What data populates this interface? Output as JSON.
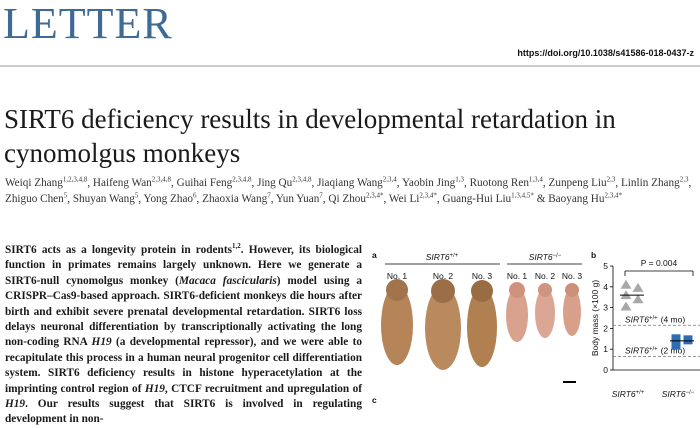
{
  "header": {
    "section": "LETTER",
    "doi": "https://doi.org/10.1038/s41586-018-0437-z"
  },
  "title": "SIRT6 deficiency results in developmental retardation in cynomolgus monkeys",
  "authors": [
    {
      "name": "Weiqi Zhang",
      "affil": "1,2,3,4,8",
      "sep": ", "
    },
    {
      "name": "Haifeng Wan",
      "affil": "2,3,4,8",
      "sep": ", "
    },
    {
      "name": "Guihai Feng",
      "affil": "2,3,4,8",
      "sep": ", "
    },
    {
      "name": "Jing Qu",
      "affil": "2,3,4,8",
      "sep": ", "
    },
    {
      "name": "Jiaqiang Wang",
      "affil": "2,3,4",
      "sep": ", "
    },
    {
      "name": "Yaobin Jing",
      "affil": "1,3",
      "sep": ", "
    },
    {
      "name": "Ruotong Ren",
      "affil": "1,3,4",
      "sep": ", "
    },
    {
      "name": "Zunpeng Liu",
      "affil": "2,3",
      "sep": ", "
    },
    {
      "name": "Linlin Zhang",
      "affil": "2,3",
      "sep": ", "
    },
    {
      "name": "Zhiguo Chen",
      "affil": "5",
      "sep": ", "
    },
    {
      "name": "Shuyan Wang",
      "affil": "5",
      "sep": ", "
    },
    {
      "name": "Yong Zhao",
      "affil": "6",
      "sep": ", "
    },
    {
      "name": "Zhaoxia Wang",
      "affil": "7",
      "sep": ", "
    },
    {
      "name": "Yun Yuan",
      "affil": "7",
      "sep": ", "
    },
    {
      "name": "Qi Zhou",
      "affil": "2,3,4*",
      "sep": ", "
    },
    {
      "name": "Wei Li",
      "affil": "2,3,4*",
      "sep": ", "
    },
    {
      "name": "Guang-Hui Liu",
      "affil": "1,3,4,5*",
      "sep": " & "
    },
    {
      "name": "Baoyang Hu",
      "affil": "2,3,4*"
    }
  ],
  "abstract": [
    {
      "text": "SIRT6 acts as a longevity protein in rodents"
    },
    {
      "text": "1,2",
      "style": "sup"
    },
    {
      "text": ". However, its biological function in primates remains largely unknown. Here we generate a SIRT6-null cynomolgus monkey ("
    },
    {
      "text": "Macaca fascicularis",
      "style": "italic"
    },
    {
      "text": ") model using a CRISPR–Cas9-based approach. SIRT6-deficient monkeys die hours after birth and exhibit severe prenatal developmental retardation. SIRT6 loss delays neuronal differentiation by transcriptionally activating the long non-coding RNA "
    },
    {
      "text": "H19",
      "style": "italic"
    },
    {
      "text": " (a developmental repressor), and we were able to recapitulate this process in a human neural progenitor cell differentiation system. SIRT6 deficiency results in histone hyperacetylation at the imprinting control region of "
    },
    {
      "text": "H19",
      "style": "italic"
    },
    {
      "text": ", CTCF recruitment and upregulation of "
    },
    {
      "text": "H19",
      "style": "italic"
    },
    {
      "text": ". Our results suggest that SIRT6 is involved in regulating development in non-"
    }
  ],
  "figure": {
    "panel_a": {
      "label": "a",
      "groups": [
        {
          "gene": "SIRT6",
          "genotype": "+/+",
          "animals": [
            "No. 1",
            "No. 2",
            "No. 3"
          ]
        },
        {
          "gene": "SIRT6",
          "genotype": "−/−",
          "animals": [
            "No. 1",
            "No. 2",
            "No. 3"
          ]
        }
      ]
    },
    "panel_b": {
      "label": "b",
      "type": "scatter",
      "ylabel": "Body mass (×100 g)",
      "ylim": [
        0,
        5
      ],
      "yticks": [
        0,
        1,
        2,
        3,
        4,
        5
      ],
      "annotation": "P = 0.004",
      "groups": [
        {
          "gene": "SIRT6",
          "genotype": "+/+",
          "marker": "triangle",
          "color": "#a8a8a8",
          "values": [
            4.1,
            3.95,
            3.6,
            3.4,
            3.05
          ],
          "median": 3.6
        },
        {
          "gene": "SIRT6",
          "genotype": "−/−",
          "marker": "square",
          "color": "#2e6cb4",
          "values": [
            1.5,
            1.45,
            1.2
          ],
          "median": 1.4
        }
      ],
      "reference_lines": [
        {
          "value": 2.15,
          "gene": "SIRT6",
          "genotype": "+/+",
          "note": "(4 mo)"
        },
        {
          "value": 0.65,
          "gene": "SIRT6",
          "genotype": "+/+",
          "note": "(2 mo)"
        }
      ]
    },
    "panel_c": {
      "label": "c"
    }
  }
}
